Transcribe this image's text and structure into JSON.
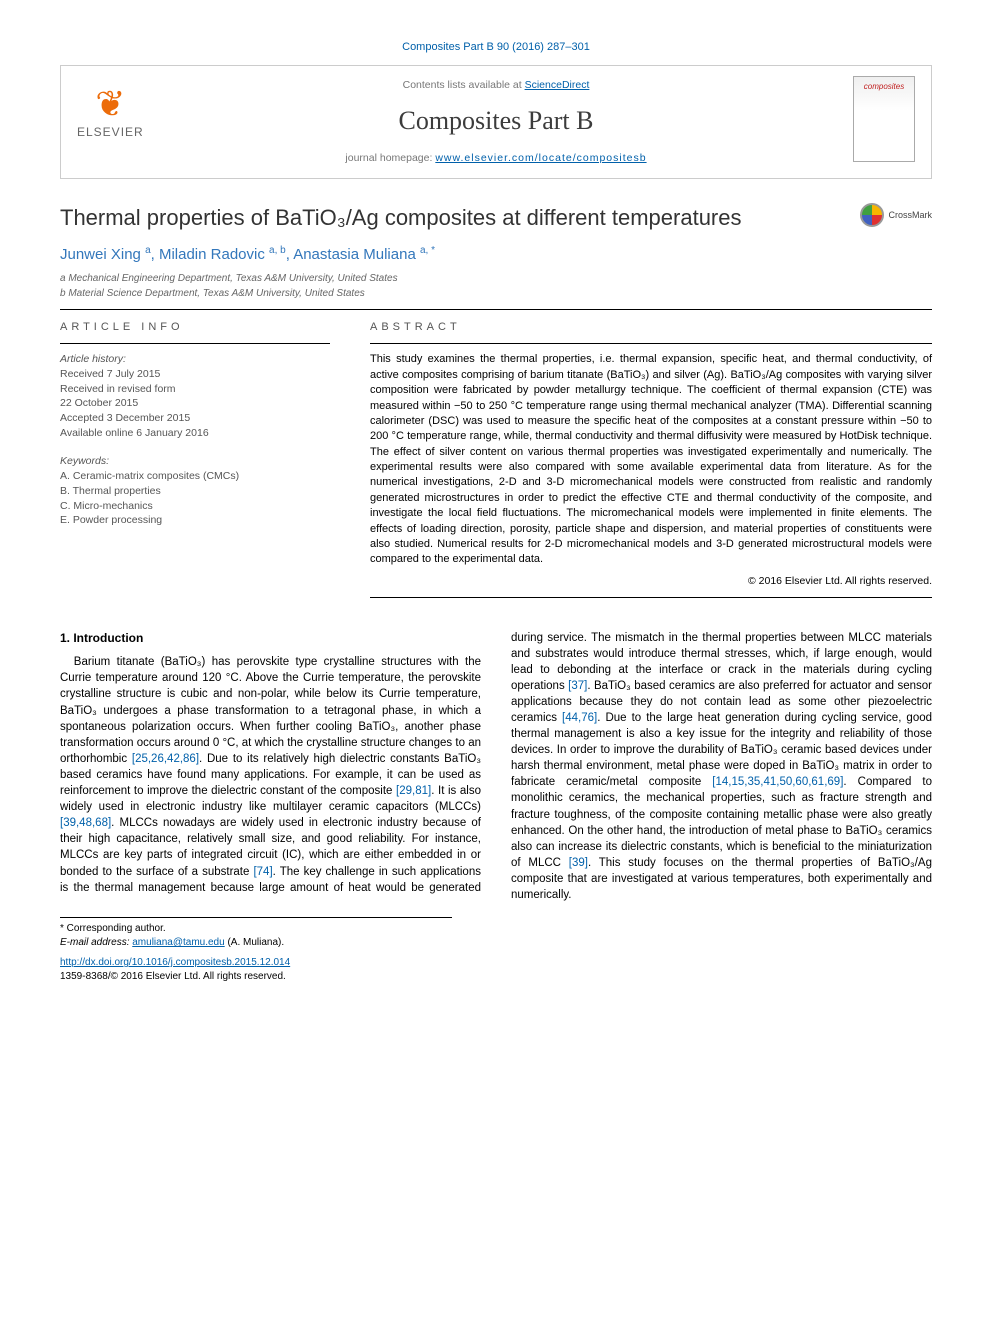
{
  "top_citation": "Composites Part B 90 (2016) 287–301",
  "header": {
    "contents_prefix": "Contents lists available at ",
    "contents_link": "ScienceDirect",
    "journal": "Composites Part B",
    "homepage_prefix": "journal homepage: ",
    "homepage_url": "www.elsevier.com/locate/compositesb",
    "publisher_logo_text": "ELSEVIER",
    "cover_label": "composites"
  },
  "crossmark_label": "CrossMark",
  "title": "Thermal properties of BaTiO₃/Ag composites at different temperatures",
  "authors_html": "Junwei Xing <sup>a</sup>, Miladin Radovic <sup>a, b</sup>, Anastasia Muliana <sup>a, *</sup>",
  "affiliations": {
    "a": "a Mechanical Engineering Department, Texas A&M University, United States",
    "b": "b Material Science Department, Texas A&M University, United States"
  },
  "article_info": {
    "heading": "ARTICLE INFO",
    "history_label": "Article history:",
    "lines": [
      "Received 7 July 2015",
      "Received in revised form",
      "22 October 2015",
      "Accepted 3 December 2015",
      "Available online 6 January 2016"
    ],
    "keywords_label": "Keywords:",
    "keywords": [
      "A. Ceramic-matrix composites (CMCs)",
      "B. Thermal properties",
      "C. Micro-mechanics",
      "E. Powder processing"
    ]
  },
  "abstract": {
    "heading": "ABSTRACT",
    "text": "This study examines the thermal properties, i.e. thermal expansion, specific heat, and thermal conductivity, of active composites comprising of barium titanate (BaTiO₃) and silver (Ag). BaTiO₃/Ag composites with varying silver composition were fabricated by powder metallurgy technique. The coefficient of thermal expansion (CTE) was measured within −50 to 250 °C temperature range using thermal mechanical analyzer (TMA). Differential scanning calorimeter (DSC) was used to measure the specific heat of the composites at a constant pressure within −50 to 200 °C temperature range, while, thermal conductivity and thermal diffusivity were measured by HotDisk technique. The effect of silver content on various thermal properties was investigated experimentally and numerically. The experimental results were also compared with some available experimental data from literature. As for the numerical investigations, 2-D and 3-D micromechanical models were constructed from realistic and randomly generated microstructures in order to predict the effective CTE and thermal conductivity of the composite, and investigate the local field fluctuations. The micromechanical models were implemented in finite elements. The effects of loading direction, porosity, particle shape and dispersion, and material properties of constituents were also studied. Numerical results for 2-D micromechanical models and 3-D generated microstructural models were compared to the experimental data.",
    "copyright": "© 2016 Elsevier Ltd. All rights reserved."
  },
  "body": {
    "section_heading": "1. Introduction",
    "paragraph": "Barium titanate (BaTiO₃) has perovskite type crystalline structures with the Currie temperature around 120 °C. Above the Currie temperature, the perovskite crystalline structure is cubic and non-polar, while below its Currie temperature, BaTiO₃ undergoes a phase transformation to a tetragonal phase, in which a spontaneous polarization occurs. When further cooling BaTiO₃, another phase transformation occurs around 0 °C, at which the crystalline structure changes to an orthorhombic [25,26,42,86]. Due to its relatively high dielectric constants BaTiO₃ based ceramics have found many applications. For example, it can be used as reinforcement to improve the dielectric constant of the composite [29,81]. It is also widely used in electronic industry like multilayer ceramic capacitors (MLCCs) [39,48,68]. MLCCs nowadays are widely used in electronic industry because of their high capacitance, relatively small size, and good reliability. For instance, MLCCs are key parts of integrated circuit (IC), which are either embedded in or bonded to the surface of a substrate [74]. The key challenge in such applications is the thermal management because large amount of heat would be generated during service. The mismatch in the thermal properties between MLCC materials and substrates would introduce thermal stresses, which, if large enough, would lead to debonding at the interface or crack in the materials during cycling operations [37]. BaTiO₃ based ceramics are also preferred for actuator and sensor applications because they do not contain lead as some other piezoelectric ceramics [44,76]. Due to the large heat generation during cycling service, good thermal management is also a key issue for the integrity and reliability of those devices. In order to improve the durability of BaTiO₃ ceramic based devices under harsh thermal environment, metal phase were doped in BaTiO₃ matrix in order to fabricate ceramic/metal composite [14,15,35,41,50,60,61,69]. Compared to monolithic ceramics, the mechanical properties, such as fracture strength and fracture toughness, of the composite containing metallic phase were also greatly enhanced. On the other hand, the introduction of metal phase to BaTiO₃ ceramics also can increase its dielectric constants, which is beneficial to the miniaturization of MLCC [39]. This study focuses on the thermal properties of BaTiO₃/Ag composite that are investigated at various temperatures, both experimentally and numerically.",
    "refs": {
      "r1": "[25,26,42,86]",
      "r2": "[29,81]",
      "r3": "[39,48,68]",
      "r4": "[74]",
      "r5": "[37]",
      "r6": "[44,76]",
      "r7": "[14,15,35,41,50,60,61,69]",
      "r8": "[39]"
    }
  },
  "footnote": {
    "corresponding": "* Corresponding author.",
    "email_label": "E-mail address: ",
    "email": "amuliana@tamu.edu",
    "email_suffix": " (A. Muliana)."
  },
  "doi": {
    "url": "http://dx.doi.org/10.1016/j.compositesb.2015.12.014",
    "issn_line": "1359-8368/© 2016 Elsevier Ltd. All rights reserved."
  },
  "colors": {
    "link": "#0060aa",
    "author": "#3377bb",
    "logo_orange": "#ec6c0a",
    "text_gray": "#555555"
  }
}
